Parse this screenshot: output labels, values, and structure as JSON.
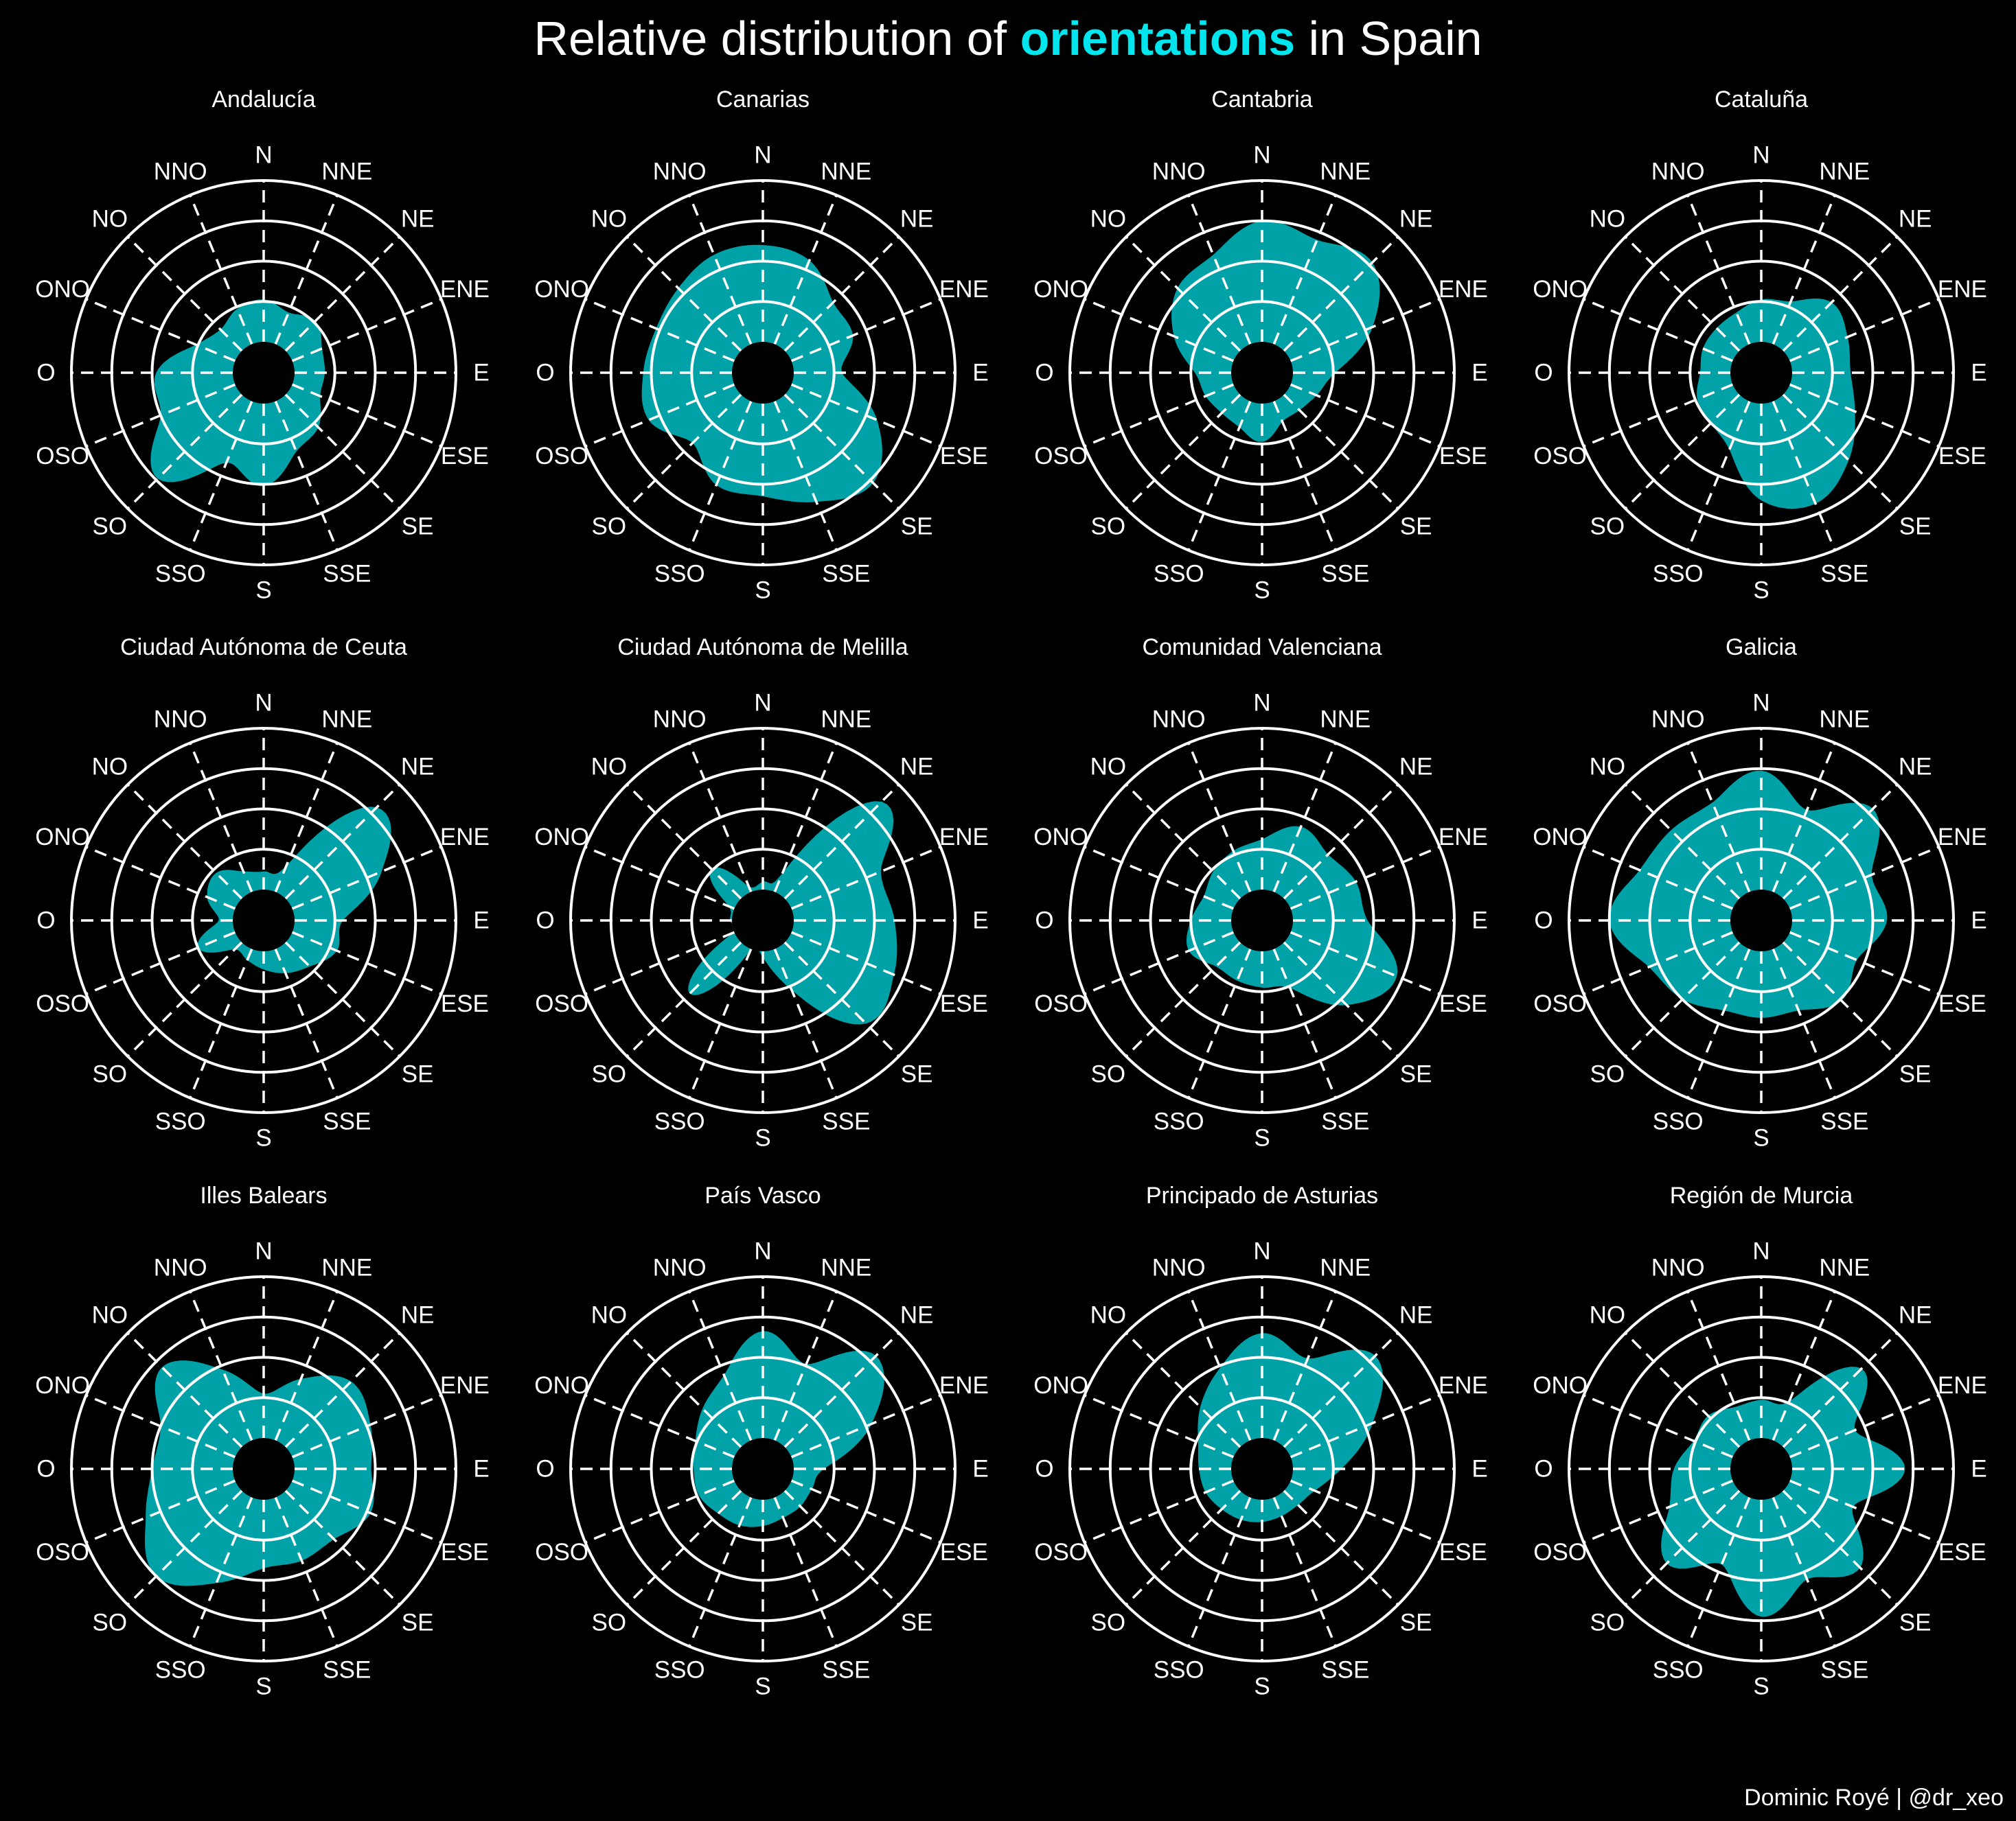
{
  "title": {
    "prefix": "Relative distribution of",
    "highlight": "orientations",
    "suffix": "in Spain"
  },
  "caption": "Dominic Royé | @dr_xeo",
  "colors": {
    "background": "#000000",
    "accent": "#00e5ee",
    "text": "#ffffff",
    "grid": "#ffffff"
  },
  "chart_data": {
    "type": "area",
    "coord": "polar",
    "directions": [
      "N",
      "NNE",
      "NE",
      "ENE",
      "E",
      "ESE",
      "SE",
      "SSE",
      "S",
      "SSO",
      "SO",
      "OSO",
      "O",
      "ONO",
      "NO",
      "NNO"
    ],
    "rings": [
      1,
      2,
      3,
      4
    ],
    "rlim": [
      0,
      4
    ],
    "grid": true,
    "panels": [
      {
        "name": "Andalucía",
        "values": [
          1.05,
          0.85,
          1.05,
          0.8,
          0.75,
          0.75,
          1.15,
          1.35,
          2.05,
          1.65,
          2.95,
          2.0,
          1.9,
          1.05,
          0.75,
          0.95
        ]
      },
      {
        "name": "Canarias",
        "values": [
          2.4,
          2.25,
          1.7,
          1.65,
          1.2,
          2.3,
          3.1,
          2.7,
          2.3,
          2.25,
          1.7,
          2.3,
          2.2,
          2.1,
          2.2,
          2.4
        ]
      },
      {
        "name": "Cantabria",
        "values": [
          3.0,
          2.8,
          3.1,
          2.2,
          1.05,
          0.7,
          0.55,
          0.55,
          0.95,
          0.7,
          0.65,
          0.75,
          0.9,
          1.6,
          2.2,
          2.4
        ]
      },
      {
        "name": "Cataluña",
        "values": [
          1.05,
          1.15,
          1.7,
          1.55,
          1.45,
          1.75,
          2.3,
          2.75,
          2.4,
          1.3,
          1.0,
          0.95,
          0.75,
          0.8,
          0.8,
          0.85
        ]
      },
      {
        "name": "Ciudad Autónoma de Ceuta",
        "values": [
          0.45,
          0.7,
          3.2,
          2.4,
          1.2,
          1.2,
          0.85,
          0.65,
          0.45,
          0.3,
          0.25,
          1.0,
          0.35,
          0.75,
          0.9,
          0.55
        ]
      },
      {
        "name": "Ciudad Autónoma de Melilla",
        "values": [
          0.2,
          0.5,
          3.4,
          2.4,
          2.5,
          2.75,
          2.85,
          1.1,
          0.15,
          0.05,
          1.8,
          0.05,
          0.05,
          0.15,
          1.05,
          0.15
        ]
      },
      {
        "name": "Comunidad Valenciana",
        "values": [
          1.25,
          1.75,
          1.55,
          1.75,
          1.85,
          2.85,
          2.2,
          1.05,
          0.9,
          0.85,
          0.85,
          1.2,
          1.0,
          0.8,
          0.95,
          1.1
        ]
      },
      {
        "name": "Galicia",
        "values": [
          2.95,
          2.2,
          3.15,
          2.2,
          2.35,
          1.8,
          2.05,
          1.65,
          1.65,
          1.65,
          2.0,
          2.25,
          3.0,
          2.5,
          2.4,
          2.4
        ]
      },
      {
        "name": "Illes Balears",
        "values": [
          1.1,
          1.65,
          2.3,
          2.1,
          1.9,
          2.1,
          1.7,
          1.7,
          1.7,
          2.3,
          3.0,
          2.4,
          2.0,
          2.0,
          2.8,
          1.9
        ]
      },
      {
        "name": "País Vasco",
        "values": [
          2.65,
          2.05,
          3.2,
          2.15,
          0.75,
          0.55,
          0.55,
          0.55,
          0.65,
          0.75,
          0.8,
          0.95,
          0.95,
          1.05,
          1.35,
          1.75
        ]
      },
      {
        "name": "Principado de Asturias",
        "values": [
          2.6,
          2.2,
          3.2,
          2.2,
          1.2,
          0.65,
          0.5,
          0.5,
          0.55,
          0.6,
          0.65,
          0.75,
          0.8,
          0.95,
          1.4,
          1.95
        ]
      },
      {
        "name": "Región de Murcia",
        "values": [
          0.95,
          1.05,
          2.75,
          1.75,
          2.8,
          1.7,
          2.7,
          2.2,
          2.9,
          1.8,
          2.55,
          1.7,
          1.4,
          1.05,
          1.1,
          0.9
        ]
      }
    ]
  }
}
